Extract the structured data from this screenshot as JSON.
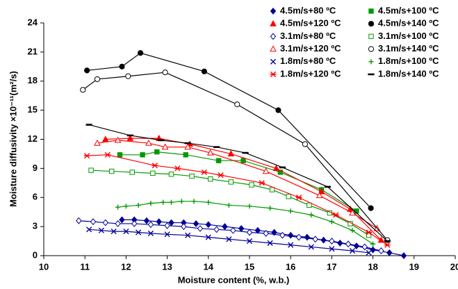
{
  "chart_data": {
    "type": "scatter",
    "xlabel": "Moisture content (%, w.b.)",
    "ylabel": "Moisture diffusivity ×10⁻¹¹(m²/s)",
    "xlim": [
      10,
      20
    ],
    "xticks": [
      10,
      11,
      12,
      13,
      14,
      15,
      16,
      17,
      18,
      19,
      20
    ],
    "ylim": [
      0,
      24
    ],
    "yticks": [
      0,
      3,
      6,
      9,
      12,
      15,
      18,
      21,
      24
    ],
    "grid": false,
    "legend": "upper right",
    "trendline": true,
    "series": [
      {
        "name": "4.5m/s+80 ºC",
        "color": "#000099",
        "marker": "diamond",
        "filled": true,
        "x": [
          11.9,
          12.2,
          12.5,
          12.8,
          13.1,
          13.4,
          13.7,
          14.0,
          14.4,
          14.8,
          15.2,
          15.6,
          16.0,
          16.4,
          16.8,
          17.2,
          17.6,
          18.0,
          18.4,
          18.75
        ],
        "values": [
          3.7,
          3.7,
          3.6,
          3.5,
          3.4,
          3.4,
          3.3,
          3.2,
          3.0,
          2.8,
          2.6,
          2.4,
          2.1,
          1.9,
          1.6,
          1.3,
          1.0,
          0.6,
          0.3,
          0
        ]
      },
      {
        "name": "4.5m/s+100 ºC",
        "color": "#009900",
        "marker": "square",
        "filled": true,
        "x": [
          11.85,
          12.4,
          12.75,
          13.45,
          14.25,
          14.85,
          15.75,
          16.75,
          17.6
        ],
        "values": [
          10.4,
          10.4,
          10.7,
          10.4,
          9.8,
          9.8,
          8.6,
          6.8,
          4.6
        ]
      },
      {
        "name": "4.5m/s+120 ºC",
        "color": "#ff0000",
        "marker": "triangle",
        "filled": true,
        "x": [
          11.5,
          12.1,
          12.8,
          13.55,
          14.55,
          15.65,
          16.75,
          17.45,
          18.2
        ],
        "values": [
          12.0,
          12.1,
          12.1,
          11.5,
          10.5,
          9.0,
          6.6,
          4.8,
          1.6
        ]
      },
      {
        "name": "4.5m/s+140 ºC",
        "color": "#000000",
        "marker": "circle",
        "filled": true,
        "x": [
          11.05,
          11.9,
          12.35,
          13.9,
          15.7,
          17.95
        ],
        "values": [
          19.1,
          19.5,
          20.9,
          19.0,
          15.0,
          4.9
        ]
      },
      {
        "name": "3.1m/s+80 ºC",
        "color": "#000099",
        "marker": "diamond",
        "filled": false,
        "x": [
          10.85,
          11.2,
          11.5,
          11.8,
          12.2,
          12.6,
          13.0,
          13.4,
          13.8,
          14.2,
          14.6,
          15.0,
          15.4,
          15.8,
          16.2,
          16.6,
          17.0,
          17.4,
          17.8,
          18.2
        ],
        "values": [
          3.6,
          3.5,
          3.4,
          3.3,
          3.3,
          3.2,
          3.1,
          3.0,
          2.8,
          2.7,
          2.6,
          2.4,
          2.3,
          2.1,
          1.9,
          1.7,
          1.5,
          1.2,
          0.9,
          0.5
        ]
      },
      {
        "name": "3.1m/s+100 ºC",
        "color": "#009900",
        "marker": "square",
        "filled": false,
        "x": [
          11.15,
          11.65,
          12.15,
          12.65,
          13.1,
          13.6,
          14.05,
          14.55,
          15.05,
          15.55,
          15.95,
          16.45,
          16.95,
          17.45,
          17.9
        ],
        "values": [
          8.8,
          8.7,
          8.6,
          8.5,
          8.4,
          8.2,
          7.9,
          7.6,
          7.3,
          6.8,
          6.1,
          5.2,
          4.4,
          3.3,
          2.1
        ]
      },
      {
        "name": "3.1m/s+120 ºC",
        "color": "#ff0000",
        "marker": "triangle",
        "filled": false,
        "x": [
          11.3,
          11.8,
          12.55,
          12.95,
          13.5,
          14.05,
          15.4,
          16.7,
          17.5,
          18.1
        ],
        "values": [
          11.6,
          11.9,
          11.6,
          11.2,
          11.2,
          10.6,
          8.7,
          6.2,
          4.4,
          2.8
        ]
      },
      {
        "name": "3.1m/s+140 ºC",
        "color": "#000000",
        "marker": "circle",
        "filled": false,
        "x": [
          10.95,
          11.3,
          12.05,
          12.95,
          14.7,
          16.35,
          18.35
        ],
        "values": [
          17.1,
          18.2,
          18.5,
          18.9,
          15.6,
          11.5,
          1.6
        ]
      },
      {
        "name": "1.8m/s+80 ºC",
        "color": "#000099",
        "marker": "x",
        "filled": false,
        "x": [
          11.1,
          11.4,
          11.7,
          12.0,
          12.3,
          12.6,
          13.0,
          13.5,
          14.0,
          14.5,
          15.0,
          15.5,
          16.0,
          16.5,
          17.0,
          17.5,
          17.9
        ],
        "values": [
          2.7,
          2.6,
          2.5,
          2.5,
          2.4,
          2.3,
          2.2,
          2.1,
          1.9,
          1.7,
          1.5,
          1.3,
          1.1,
          0.9,
          0.7,
          0.5,
          0.3
        ]
      },
      {
        "name": "1.8m/s+100 ºC",
        "color": "#009900",
        "marker": "plus",
        "filled": false,
        "x": [
          11.8,
          12.0,
          12.3,
          12.6,
          12.9,
          13.1,
          13.35,
          13.65,
          14.0,
          14.5,
          15.0,
          15.5,
          16.0,
          16.5,
          17.0,
          17.5,
          18.0
        ],
        "values": [
          5.0,
          5.1,
          5.2,
          5.4,
          5.5,
          5.5,
          5.6,
          5.6,
          5.5,
          5.2,
          5.1,
          4.9,
          4.6,
          4.2,
          3.5,
          2.6,
          1.2
        ]
      },
      {
        "name": "1.8m/s+120 ºC",
        "color": "#ff0000",
        "marker": "asterisk",
        "filled": false,
        "x": [
          11.05,
          11.55,
          12.7,
          13.25,
          13.9,
          14.3,
          15.3,
          16.2,
          17.1,
          17.9,
          18.35
        ],
        "values": [
          10.3,
          10.4,
          9.3,
          9.0,
          8.6,
          8.3,
          7.5,
          6.0,
          4.2,
          2.4,
          1.1
        ]
      },
      {
        "name": "1.8m/s+140 ºC",
        "color": "#000000",
        "marker": "dash",
        "filled": true,
        "x": [
          11.1,
          12.1,
          12.85,
          13.5,
          14.2,
          14.9,
          15.8,
          16.9,
          18.35
        ],
        "values": [
          13.5,
          12.4,
          11.9,
          11.6,
          11.2,
          10.6,
          9.1,
          7.1,
          1.5
        ]
      }
    ]
  }
}
